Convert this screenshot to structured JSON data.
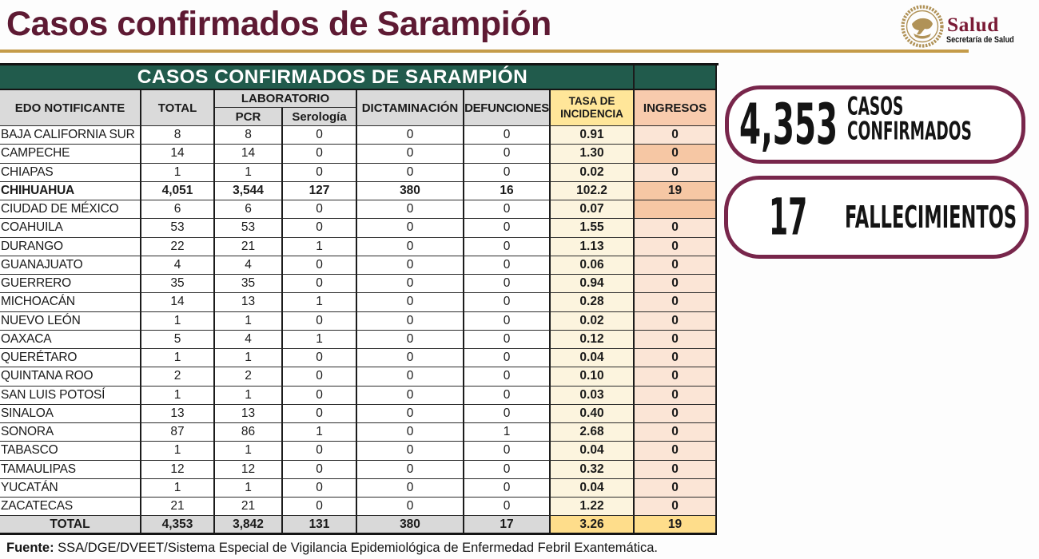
{
  "header": {
    "title": "Casos confirmados de Sarampión",
    "logo": {
      "brand": "Salud",
      "subtitle": "Secretaría de Salud"
    },
    "accent_gold": "#c49b49",
    "accent_maroon": "#5e1a33"
  },
  "table": {
    "banner": "CASOS CONFIRMADOS DE SARAMPIÓN",
    "banner_bg": "#215b4c",
    "header_cells": {
      "edo": "EDO NOTIFICANTE",
      "total": "TOTAL",
      "laboratorio": "LABORATORIO",
      "pcr": "PCR",
      "serologia": "Serología",
      "dictaminacion": "DICTAMINACIÓN",
      "defunciones": "DEFUNCIONES",
      "tasa_line1": "TASA DE",
      "tasa_line2": "INCIDENCIA",
      "ingresos": "INGRESOS"
    },
    "columns": [
      "EDO NOTIFICANTE",
      "TOTAL",
      "PCR",
      "Serología",
      "DICTAMINACIÓN",
      "DEFUNCIONES",
      "TASA DE INCIDENCIA",
      "INGRESOS"
    ],
    "rows": [
      {
        "state": "BAJA CALIFORNIA SUR",
        "total": "8",
        "pcr": "8",
        "serologia": "0",
        "dictaminacion": "0",
        "defunciones": "0",
        "tasa": "0.91",
        "ingresos": "0",
        "bold": false,
        "ingresos_shade": "light"
      },
      {
        "state": "CAMPECHE",
        "total": "14",
        "pcr": "14",
        "serologia": "0",
        "dictaminacion": "0",
        "defunciones": "0",
        "tasa": "1.30",
        "ingresos": "0",
        "bold": false,
        "ingresos_shade": "dark"
      },
      {
        "state": "CHIAPAS",
        "total": "1",
        "pcr": "1",
        "serologia": "0",
        "dictaminacion": "0",
        "defunciones": "0",
        "tasa": "0.02",
        "ingresos": "0",
        "bold": false,
        "ingresos_shade": "light"
      },
      {
        "state": "CHIHUAHUA",
        "total": "4,051",
        "pcr": "3,544",
        "serologia": "127",
        "dictaminacion": "380",
        "defunciones": "16",
        "tasa": "102.2",
        "ingresos": "19",
        "bold": true,
        "ingresos_shade": "dark"
      },
      {
        "state": "CIUDAD DE MÉXICO",
        "total": "6",
        "pcr": "6",
        "serologia": "0",
        "dictaminacion": "0",
        "defunciones": "0",
        "tasa": "0.07",
        "ingresos": "",
        "bold": false,
        "ingresos_shade": "dark"
      },
      {
        "state": "COAHUILA",
        "total": "53",
        "pcr": "53",
        "serologia": "0",
        "dictaminacion": "0",
        "defunciones": "0",
        "tasa": "1.55",
        "ingresos": "0",
        "bold": false,
        "ingresos_shade": "light"
      },
      {
        "state": "DURANGO",
        "total": "22",
        "pcr": "21",
        "serologia": "1",
        "dictaminacion": "0",
        "defunciones": "0",
        "tasa": "1.13",
        "ingresos": "0",
        "bold": false,
        "ingresos_shade": "light"
      },
      {
        "state": "GUANAJUATO",
        "total": "4",
        "pcr": "4",
        "serologia": "0",
        "dictaminacion": "0",
        "defunciones": "0",
        "tasa": "0.06",
        "ingresos": "0",
        "bold": false,
        "ingresos_shade": "light"
      },
      {
        "state": "GUERRERO",
        "total": "35",
        "pcr": "35",
        "serologia": "0",
        "dictaminacion": "0",
        "defunciones": "0",
        "tasa": "0.94",
        "ingresos": "0",
        "bold": false,
        "ingresos_shade": "light"
      },
      {
        "state": "MICHOACÁN",
        "total": "14",
        "pcr": "13",
        "serologia": "1",
        "dictaminacion": "0",
        "defunciones": "0",
        "tasa": "0.28",
        "ingresos": "0",
        "bold": false,
        "ingresos_shade": "light"
      },
      {
        "state": "NUEVO LEÓN",
        "total": "1",
        "pcr": "1",
        "serologia": "0",
        "dictaminacion": "0",
        "defunciones": "0",
        "tasa": "0.02",
        "ingresos": "0",
        "bold": false,
        "ingresos_shade": "light"
      },
      {
        "state": "OAXACA",
        "total": "5",
        "pcr": "4",
        "serologia": "1",
        "dictaminacion": "0",
        "defunciones": "0",
        "tasa": "0.12",
        "ingresos": "0",
        "bold": false,
        "ingresos_shade": "light"
      },
      {
        "state": "QUERÉTARO",
        "total": "1",
        "pcr": "1",
        "serologia": "0",
        "dictaminacion": "0",
        "defunciones": "0",
        "tasa": "0.04",
        "ingresos": "0",
        "bold": false,
        "ingresos_shade": "light"
      },
      {
        "state": "QUINTANA ROO",
        "total": "2",
        "pcr": "2",
        "serologia": "0",
        "dictaminacion": "0",
        "defunciones": "0",
        "tasa": "0.10",
        "ingresos": "0",
        "bold": false,
        "ingresos_shade": "light"
      },
      {
        "state": "SAN LUIS POTOSÍ",
        "total": "1",
        "pcr": "1",
        "serologia": "0",
        "dictaminacion": "0",
        "defunciones": "0",
        "tasa": "0.03",
        "ingresos": "0",
        "bold": false,
        "ingresos_shade": "light"
      },
      {
        "state": "SINALOA",
        "total": "13",
        "pcr": "13",
        "serologia": "0",
        "dictaminacion": "0",
        "defunciones": "0",
        "tasa": "0.40",
        "ingresos": "0",
        "bold": false,
        "ingresos_shade": "light"
      },
      {
        "state": "SONORA",
        "total": "87",
        "pcr": "86",
        "serologia": "1",
        "dictaminacion": "0",
        "defunciones": "1",
        "tasa": "2.68",
        "ingresos": "0",
        "bold": false,
        "ingresos_shade": "light"
      },
      {
        "state": "TABASCO",
        "total": "1",
        "pcr": "1",
        "serologia": "0",
        "dictaminacion": "0",
        "defunciones": "0",
        "tasa": "0.04",
        "ingresos": "0",
        "bold": false,
        "ingresos_shade": "light"
      },
      {
        "state": "TAMAULIPAS",
        "total": "12",
        "pcr": "12",
        "serologia": "0",
        "dictaminacion": "0",
        "defunciones": "0",
        "tasa": "0.32",
        "ingresos": "0",
        "bold": false,
        "ingresos_shade": "light"
      },
      {
        "state": "YUCATÁN",
        "total": "1",
        "pcr": "1",
        "serologia": "0",
        "dictaminacion": "0",
        "defunciones": "0",
        "tasa": "0.04",
        "ingresos": "0",
        "bold": false,
        "ingresos_shade": "light"
      },
      {
        "state": "ZACATECAS",
        "total": "21",
        "pcr": "21",
        "serologia": "0",
        "dictaminacion": "0",
        "defunciones": "0",
        "tasa": "1.22",
        "ingresos": "0",
        "bold": false,
        "ingresos_shade": "light"
      }
    ],
    "total_row": {
      "label": "TOTAL",
      "total": "4,353",
      "pcr": "3,842",
      "serologia": "131",
      "dictaminacion": "380",
      "defunciones": "17",
      "tasa": "3.26",
      "ingresos": "19"
    }
  },
  "badges": [
    {
      "value": "4,353",
      "label_lines": [
        "CASOS",
        "CONFIRMADOS"
      ]
    },
    {
      "value": "17",
      "label_lines": [
        "FALLECIMIENTOS"
      ]
    }
  ],
  "footer": {
    "prefix": "Fuente:",
    "text": " SSA/DGE/DVEET/Sistema Especial de Vigilancia Epidemiológica de Enfermedad Febril Exantemática."
  }
}
